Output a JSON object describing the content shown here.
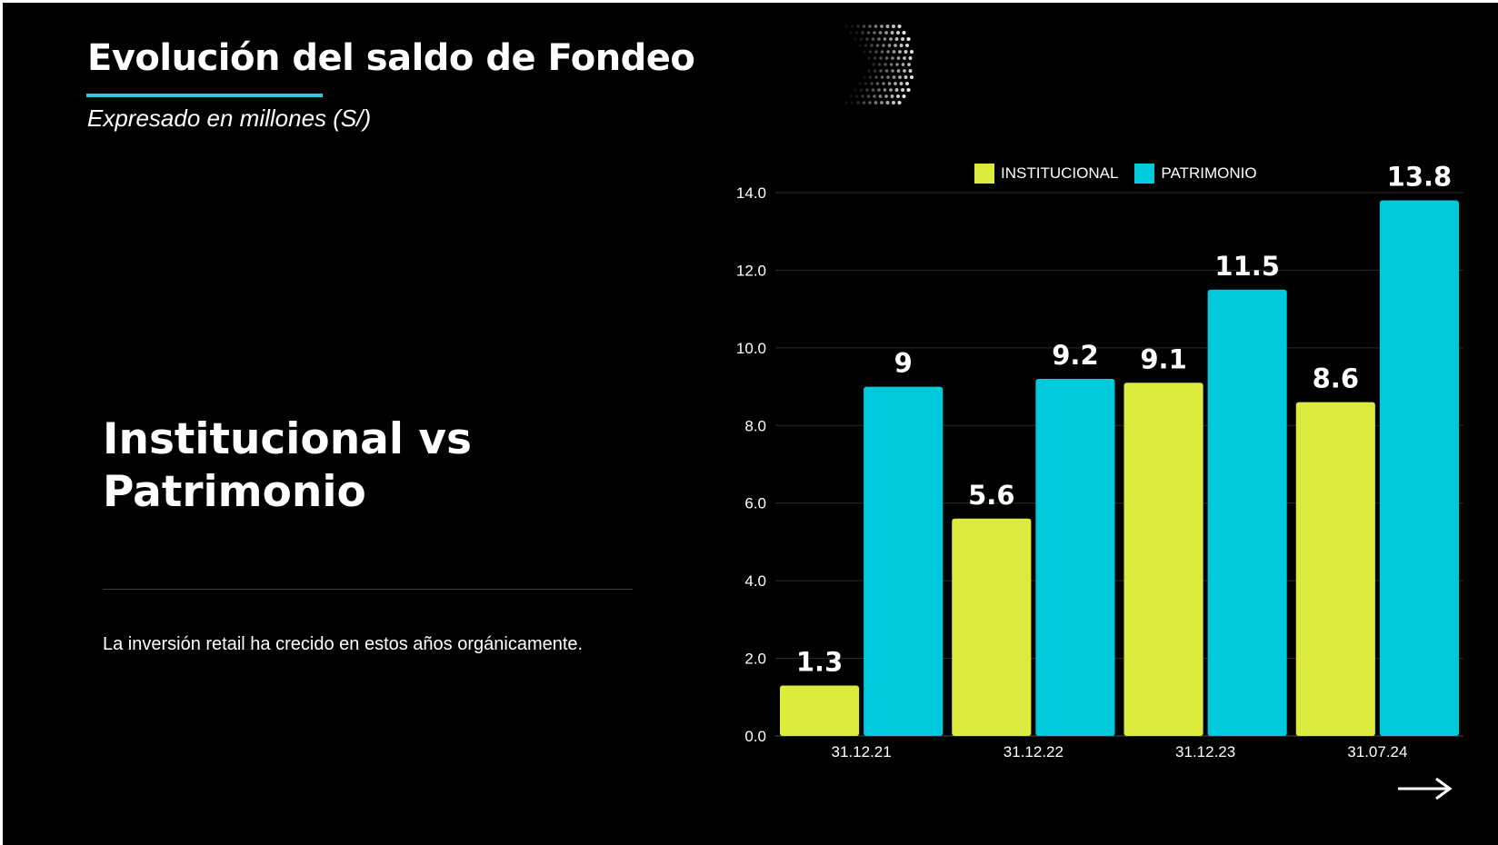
{
  "slide": {
    "title": "Evolución del saldo de Fondeo",
    "subtitle": "Expresado en millones (S/)",
    "heading_line1": "Institucional vs",
    "heading_line2": "Patrimonio",
    "note": "La inversión retail ha crecido en estos años orgánicamente.",
    "accent_color": "#33c6dd",
    "decor_icons": [
      "dotted-chevron-icon",
      "arrow-right-icon"
    ]
  },
  "chart_data": {
    "type": "bar",
    "categories": [
      "31.12.21",
      "31.12.22",
      "31.12.23",
      "31.07.24"
    ],
    "series": [
      {
        "name": "INSTITUCIONAL",
        "color": "#dcea3e",
        "values": [
          1.3,
          5.6,
          9.1,
          8.6
        ],
        "labels": [
          "1.3",
          "5.6",
          "9.1",
          "8.6"
        ]
      },
      {
        "name": "PATRIMONIO",
        "color": "#00c9db",
        "values": [
          9,
          9.2,
          11.5,
          13.8
        ],
        "labels": [
          "9",
          "9.2",
          "11.5",
          "13.8"
        ]
      }
    ],
    "ylim": [
      0,
      14
    ],
    "yticks": [
      "0.0",
      "2.0",
      "4.0",
      "6.0",
      "8.0",
      "10.0",
      "12.0",
      "14.0"
    ],
    "grid": true,
    "legend_position": "top"
  }
}
